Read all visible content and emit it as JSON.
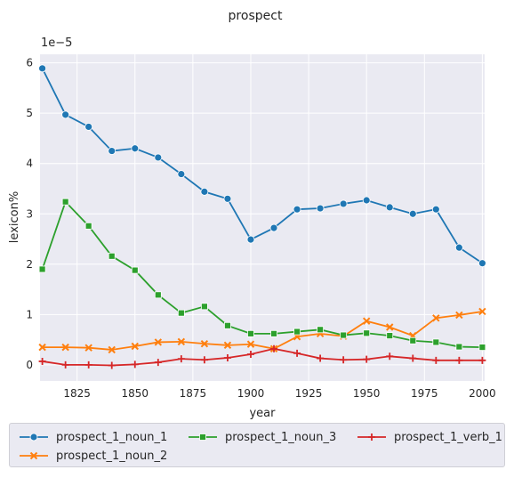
{
  "chart_data": {
    "type": "line",
    "title": "prospect",
    "xlabel": "year",
    "ylabel": "lexicon%",
    "scale_label": "1e−5",
    "x": [
      1810,
      1820,
      1830,
      1840,
      1850,
      1860,
      1870,
      1880,
      1890,
      1900,
      1910,
      1920,
      1930,
      1940,
      1950,
      1960,
      1970,
      1980,
      1990,
      2000
    ],
    "xlim": [
      1809,
      2001
    ],
    "ylim": [
      -0.32,
      6.17
    ],
    "x_ticks": [
      1825,
      1850,
      1875,
      1900,
      1925,
      1950,
      1975,
      2000
    ],
    "y_ticks": [
      0,
      1,
      2,
      3,
      4,
      5,
      6
    ],
    "grid": true,
    "legend_position": "bottom",
    "series": [
      {
        "name": "prospect_1_noun_1",
        "color": "#1f77b4",
        "marker": "circle",
        "values": [
          5.89,
          4.97,
          4.73,
          4.25,
          4.3,
          4.12,
          3.79,
          3.44,
          3.3,
          2.49,
          2.72,
          3.09,
          3.11,
          3.2,
          3.27,
          3.13,
          3.0,
          3.09,
          2.33,
          2.02
        ]
      },
      {
        "name": "prospect_1_noun_2",
        "color": "#ff7f0e",
        "marker": "x",
        "values": [
          0.35,
          0.35,
          0.34,
          0.3,
          0.37,
          0.45,
          0.46,
          0.42,
          0.39,
          0.41,
          0.32,
          0.56,
          0.62,
          0.57,
          0.87,
          0.75,
          0.58,
          0.93,
          0.99,
          1.06
        ]
      },
      {
        "name": "prospect_1_noun_3",
        "color": "#2ca02c",
        "marker": "square",
        "values": [
          1.9,
          3.24,
          2.76,
          2.16,
          1.88,
          1.39,
          1.03,
          1.16,
          0.78,
          0.62,
          0.62,
          0.66,
          0.7,
          0.59,
          0.63,
          0.58,
          0.48,
          0.45,
          0.36,
          0.35
        ]
      },
      {
        "name": "prospect_1_verb_1",
        "color": "#d62728",
        "marker": "plus",
        "values": [
          0.07,
          0.0,
          0.0,
          -0.01,
          0.01,
          0.05,
          0.12,
          0.1,
          0.14,
          0.21,
          0.32,
          0.23,
          0.13,
          0.1,
          0.11,
          0.17,
          0.13,
          0.09,
          0.09,
          0.09
        ]
      }
    ]
  }
}
